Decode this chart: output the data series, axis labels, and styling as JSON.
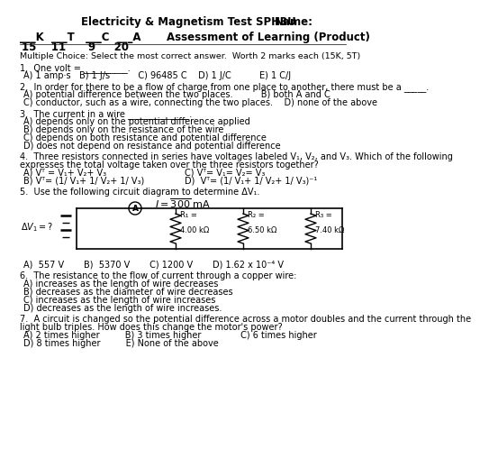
{
  "title_left": "Electricity & Magnetism Test SPH3U",
  "title_right": "Name:",
  "line2_left": "___K  ___T   ___C  ___A",
  "line2_right": "Assessment of Learning (Product)",
  "line3": "15    11      9     20",
  "instruction": "Multiple Choice: Select the most correct answer.  Worth 2 marks each (15K, 5T)",
  "q1_text": "1.  One volt = __________.",
  "q1_opts": "A) 1 amp·s   B) 1 J/s          C) 96485 C    D) 1 J/C          E) 1 C/J",
  "q2_text": "2.  In order for there to be a flow of charge from one place to another, there must be a _____.",
  "q2_opt1": "A) potential difference between the two places.          B) both A and C",
  "q2_opt2": "C) conductor, such as a wire, connecting the two places.    D) none of the above",
  "q3_text": "3.  The current in a wire ______________.",
  "q3_opt1": "A) depends only on the potential difference applied",
  "q3_opt2": "B) depends only on the resistance of the wire",
  "q3_opt3": "C) depends on both resistance and potential difference",
  "q3_opt4": "D) does not depend on resistance and potential difference",
  "q4_text": "4.  Three resistors connected in series have voltages labeled V₁, V₂, and V₃. Which of the following",
  "q4_text2": "expresses the total voltage taken over the three resistors together?",
  "q4_opt1": "A) Vᵀ = V₁+ V₂+ V₃",
  "q4_opt1r": "C) Vᵀ= V₁= V₂= V₃",
  "q4_opt2": "B) Vᵀ= (1/ V₁+ 1/ V₂+ 1/ V₃)",
  "q4_opt2r": "D)  Vᵀ= (1/ V₁+ 1/ V₂+ 1/ V₃)⁻¹",
  "q5_text": "5.  Use the following circuit diagram to determine ΔV₁.",
  "q5_current": "I = 300 mA",
  "q5_dv": "ΔV₁ =?",
  "q5_R1": "R₁ =",
  "q5_R1v": "4.00 kΩ",
  "q5_R2": "R₂ =",
  "q5_R2v": "6.50 kΩ",
  "q5_R3": "R₃ =",
  "q5_R3v": "7.40 kΩ",
  "q5_opts": "A)  557 V       B)  5370 V       C) 1200 V       D) 1.62 x 10⁻⁴ V",
  "q6_text": "6.  The resistance to the flow of current through a copper wire:",
  "q6_opt1": "A) increases as the length of wire decreases",
  "q6_opt2": "B) decreases as the diameter of wire decreases",
  "q6_opt3": "C) increases as the length of wire increases",
  "q6_opt4": "D) decreases as the length of wire increases.",
  "q7_text": "7.  A circuit is changed so the potential difference across a motor doubles and the current through the",
  "q7_text2": "light bulb triples. How does this change the motor's power?",
  "q7_opt1": "A) 2 times higher         B) 3 times higher              C) 6 times higher",
  "q7_opt2": "D) 8 times higher         E) None of the above",
  "bg_color": "#ffffff",
  "text_color": "#000000"
}
